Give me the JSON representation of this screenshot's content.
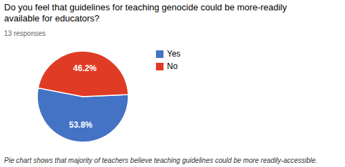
{
  "chart_data": {
    "type": "pie",
    "title": "Do you feel that guidelines for teaching genocide could be more-readily\navailable for educators?",
    "subtitle": "13 responses",
    "caption": "Pie chart shows that majority of teachers believe teaching guidelines could be more readily-accessible.",
    "categories": [
      "Yes",
      "No"
    ],
    "values": [
      53.8,
      46.2
    ],
    "value_labels": [
      "53.8%",
      "46.2%"
    ],
    "colors": [
      "#4472C4",
      "#E03B24"
    ],
    "data_labels": true,
    "legend": "right"
  }
}
